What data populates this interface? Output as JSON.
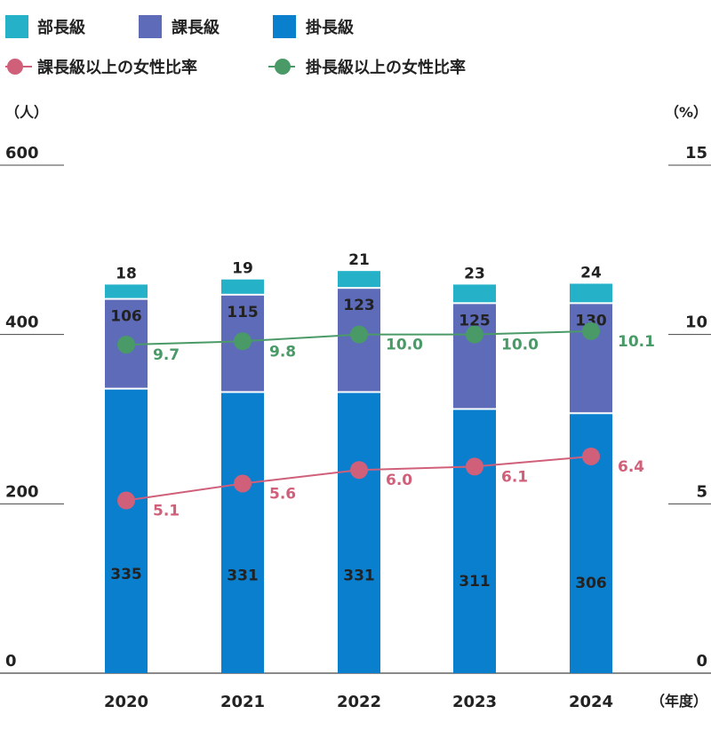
{
  "chart_data": {
    "type": "bar",
    "stacked": true,
    "categories": [
      "2020",
      "2021",
      "2022",
      "2023",
      "2024"
    ],
    "x_unit": "（年度）",
    "y_left": {
      "unit": "（人）",
      "range": [
        0,
        600
      ],
      "ticks": [
        "0",
        "200",
        "400",
        "600"
      ]
    },
    "y_right": {
      "unit": "（%）",
      "range": [
        0,
        15
      ],
      "ticks": [
        "0",
        "5",
        "10",
        "15"
      ]
    },
    "series": [
      {
        "name": "掛長級",
        "type": "bar",
        "color": "#0a7fce",
        "values": [
          335,
          331,
          331,
          311,
          306
        ]
      },
      {
        "name": "課長級",
        "type": "bar",
        "color": "#5d6bb8",
        "values": [
          106,
          115,
          123,
          125,
          130
        ]
      },
      {
        "name": "部長級",
        "type": "bar",
        "color": "#25b2c9",
        "values": [
          18,
          19,
          21,
          23,
          24
        ]
      },
      {
        "name": "課長級以上の女性比率",
        "type": "line",
        "axis": "right",
        "color": "#d0607a",
        "values": [
          5.1,
          5.6,
          6.0,
          6.1,
          6.4
        ],
        "labels": [
          "5.1",
          "5.6",
          "6.0",
          "6.1",
          "6.4"
        ]
      },
      {
        "name": "掛長級以上の女性比率",
        "type": "line",
        "axis": "right",
        "color": "#4a9a68",
        "values": [
          9.7,
          9.8,
          10.0,
          10.0,
          10.1
        ],
        "labels": [
          "9.7",
          "9.8",
          "10.0",
          "10.0",
          "10.1"
        ]
      }
    ],
    "legend_position": "top-left",
    "grid": false
  }
}
